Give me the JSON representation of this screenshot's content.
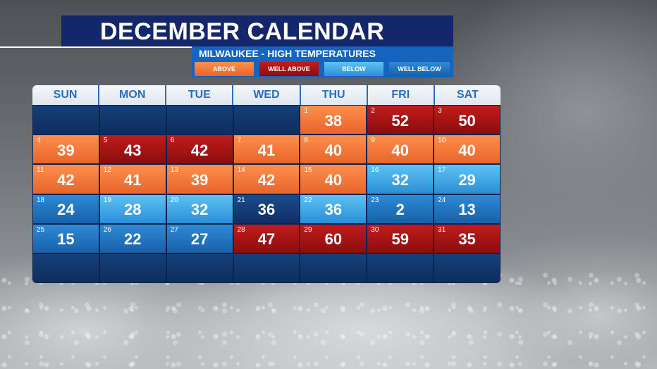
{
  "title": "DECEMBER CALENDAR",
  "subtitle": "MILWAUKEE - HIGH TEMPERATURES",
  "legend": [
    {
      "label": "ABOVE",
      "color": "#e8642b"
    },
    {
      "label": "WELL ABOVE",
      "color": "#a51414"
    },
    {
      "label": "BELOW",
      "color": "#3aa2e5"
    },
    {
      "label": "WELL BELOW",
      "color": "#1e6fbf"
    }
  ],
  "weekdays": [
    "SUN",
    "MON",
    "TUE",
    "WED",
    "THU",
    "FRI",
    "SAT"
  ],
  "cells": [
    {
      "day": "",
      "temp": "",
      "status": "empty"
    },
    {
      "day": "",
      "temp": "",
      "status": "empty"
    },
    {
      "day": "",
      "temp": "",
      "status": "empty"
    },
    {
      "day": "",
      "temp": "",
      "status": "empty"
    },
    {
      "day": "1",
      "temp": "38",
      "status": "above"
    },
    {
      "day": "2",
      "temp": "52",
      "status": "well_above"
    },
    {
      "day": "3",
      "temp": "50",
      "status": "well_above"
    },
    {
      "day": "4",
      "temp": "39",
      "status": "above"
    },
    {
      "day": "5",
      "temp": "43",
      "status": "well_above"
    },
    {
      "day": "6",
      "temp": "42",
      "status": "well_above"
    },
    {
      "day": "7",
      "temp": "41",
      "status": "above"
    },
    {
      "day": "8",
      "temp": "40",
      "status": "above"
    },
    {
      "day": "9",
      "temp": "40",
      "status": "above"
    },
    {
      "day": "10",
      "temp": "40",
      "status": "above"
    },
    {
      "day": "11",
      "temp": "42",
      "status": "above"
    },
    {
      "day": "12",
      "temp": "41",
      "status": "above"
    },
    {
      "day": "13",
      "temp": "39",
      "status": "above"
    },
    {
      "day": "14",
      "temp": "42",
      "status": "above"
    },
    {
      "day": "15",
      "temp": "40",
      "status": "above"
    },
    {
      "day": "16",
      "temp": "32",
      "status": "below"
    },
    {
      "day": "17",
      "temp": "29",
      "status": "below"
    },
    {
      "day": "18",
      "temp": "24",
      "status": "well_below"
    },
    {
      "day": "19",
      "temp": "28",
      "status": "below"
    },
    {
      "day": "20",
      "temp": "32",
      "status": "below"
    },
    {
      "day": "21",
      "temp": "36",
      "status": "normal"
    },
    {
      "day": "22",
      "temp": "36",
      "status": "below"
    },
    {
      "day": "23",
      "temp": "2",
      "status": "well_below"
    },
    {
      "day": "24",
      "temp": "13",
      "status": "well_below"
    },
    {
      "day": "25",
      "temp": "15",
      "status": "well_below"
    },
    {
      "day": "26",
      "temp": "22",
      "status": "well_below"
    },
    {
      "day": "27",
      "temp": "27",
      "status": "well_below"
    },
    {
      "day": "28",
      "temp": "47",
      "status": "well_above"
    },
    {
      "day": "29",
      "temp": "60",
      "status": "well_above"
    },
    {
      "day": "30",
      "temp": "59",
      "status": "well_above"
    },
    {
      "day": "31",
      "temp": "35",
      "status": "well_above"
    },
    {
      "day": "",
      "temp": "",
      "status": "empty"
    },
    {
      "day": "",
      "temp": "",
      "status": "empty"
    },
    {
      "day": "",
      "temp": "",
      "status": "empty"
    },
    {
      "day": "",
      "temp": "",
      "status": "empty"
    },
    {
      "day": "",
      "temp": "",
      "status": "empty"
    },
    {
      "day": "",
      "temp": "",
      "status": "empty"
    },
    {
      "day": "",
      "temp": "",
      "status": "empty"
    }
  ]
}
